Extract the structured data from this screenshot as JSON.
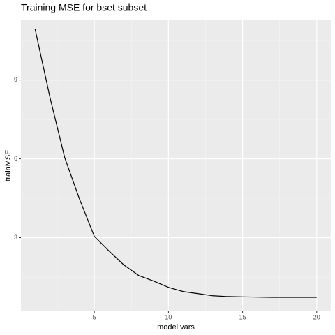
{
  "chart_data": {
    "type": "line",
    "title": "Training MSE for bset subset",
    "x_label": "model vars",
    "y_label": "trainMSE",
    "x": [
      1,
      2,
      3,
      4,
      5,
      6,
      7,
      8,
      9,
      10,
      11,
      12,
      13,
      14,
      15,
      16,
      17,
      18,
      19,
      20
    ],
    "series": [
      {
        "name": "trainMSE",
        "color": "#000000",
        "values": [
          10.95,
          8.36,
          6.05,
          4.47,
          3.05,
          2.49,
          1.96,
          1.56,
          1.35,
          1.11,
          0.95,
          0.87,
          0.79,
          0.76,
          0.75,
          0.74,
          0.73,
          0.73,
          0.73,
          0.73
        ]
      }
    ],
    "xlim": [
      0.05,
      20.95
    ],
    "xticks": [
      5,
      10,
      15,
      20
    ],
    "xminor": [
      2.5,
      7.5,
      12.5,
      17.5
    ],
    "ylim": [
      0.2,
      11.3
    ],
    "yticks": [
      3,
      6,
      9
    ],
    "yminor": [
      1.5,
      4.5,
      7.5,
      10.5
    ],
    "grid": true
  }
}
